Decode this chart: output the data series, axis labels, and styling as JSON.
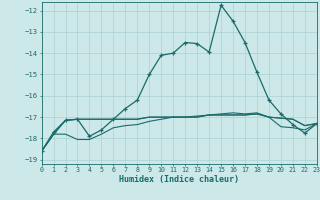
{
  "xlabel": "Humidex (Indice chaleur)",
  "xlim": [
    0,
    23
  ],
  "ylim": [
    -19.2,
    -11.6
  ],
  "yticks": [
    -19,
    -18,
    -17,
    -16,
    -15,
    -14,
    -13,
    -12
  ],
  "xticks": [
    0,
    1,
    2,
    3,
    4,
    5,
    6,
    7,
    8,
    9,
    10,
    11,
    12,
    13,
    14,
    15,
    16,
    17,
    18,
    19,
    20,
    21,
    22,
    23
  ],
  "bg_color": "#cce8e8",
  "grid_color": "#b0d4d4",
  "line_color": "#1a6b6b",
  "series": [
    {
      "y": [
        -18.6,
        -17.8,
        -17.15,
        -17.1,
        -17.1,
        -17.1,
        -17.1,
        -17.1,
        -17.1,
        -17.0,
        -17.0,
        -17.0,
        -17.0,
        -17.0,
        -16.9,
        -16.9,
        -16.9,
        -16.9,
        -16.85,
        -17.0,
        -17.05,
        -17.1,
        -17.4,
        -17.3
      ],
      "marker": false
    },
    {
      "y": [
        -18.6,
        -17.8,
        -17.15,
        -17.1,
        -17.1,
        -17.1,
        -17.1,
        -17.1,
        -17.1,
        -17.0,
        -17.0,
        -17.0,
        -17.0,
        -17.0,
        -16.9,
        -16.9,
        -16.9,
        -16.9,
        -16.85,
        -17.0,
        -17.05,
        -17.1,
        -17.4,
        -17.3
      ],
      "marker": false
    },
    {
      "y": [
        -18.6,
        -17.8,
        -17.8,
        -18.05,
        -18.05,
        -17.8,
        -17.5,
        -17.4,
        -17.35,
        -17.2,
        -17.1,
        -17.0,
        -17.0,
        -16.95,
        -16.9,
        -16.85,
        -16.8,
        -16.85,
        -16.8,
        -17.0,
        -17.45,
        -17.5,
        -17.6,
        -17.3
      ],
      "marker": false
    },
    {
      "y": [
        -18.6,
        -17.7,
        -17.15,
        -17.1,
        -17.9,
        -17.6,
        -17.1,
        -16.6,
        -16.2,
        -15.0,
        -14.1,
        -14.0,
        -13.5,
        -13.55,
        -13.95,
        -11.75,
        -12.5,
        -13.5,
        -14.9,
        -16.2,
        -16.85,
        -17.35,
        -17.75,
        -17.3
      ],
      "marker": true
    }
  ]
}
